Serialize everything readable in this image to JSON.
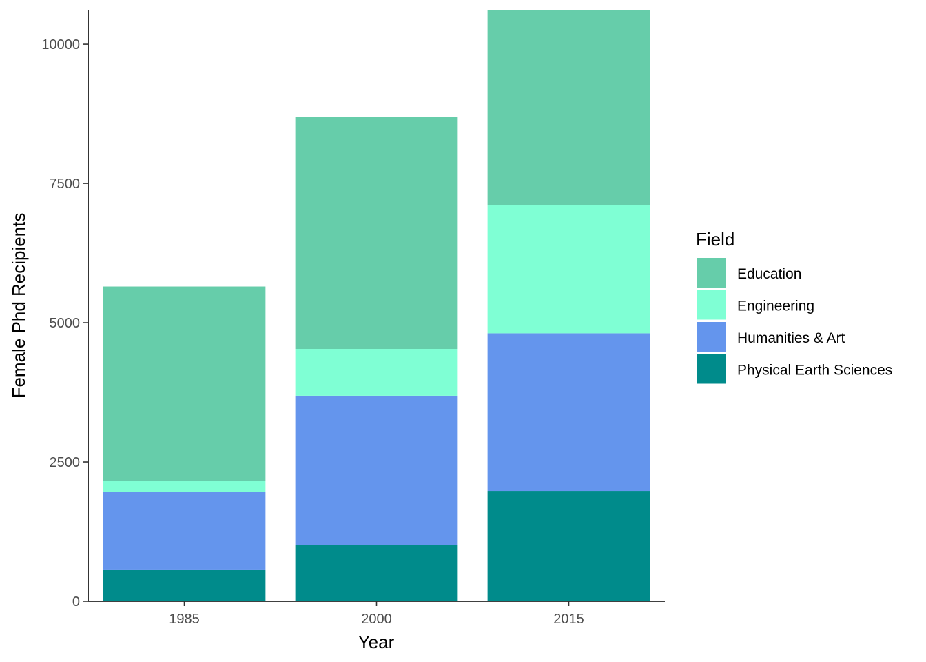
{
  "chart_data": {
    "type": "bar",
    "stacked": true,
    "title": "",
    "xlabel": "Year",
    "ylabel": "Female Phd Recipients",
    "categories": [
      "1985",
      "2000",
      "2015"
    ],
    "ylim": [
      0,
      10620
    ],
    "yticks": [
      0,
      2500,
      5000,
      7500,
      10000
    ],
    "grid": false,
    "legend": {
      "title": "Field",
      "position": "right"
    },
    "series": [
      {
        "name": "Physical Earth Sciences",
        "color": "#008B8B",
        "values": [
          570,
          1010,
          1980
        ]
      },
      {
        "name": "Humanities & Art",
        "color": "#6495ED",
        "values": [
          1390,
          2680,
          2830
        ]
      },
      {
        "name": "Engineering",
        "color": "#7FFFD4",
        "values": [
          200,
          840,
          2300
        ]
      },
      {
        "name": "Education",
        "color": "#66CDAA",
        "values": [
          3490,
          4170,
          3510
        ]
      }
    ],
    "legend_order": [
      "Education",
      "Engineering",
      "Humanities & Art",
      "Physical Earth Sciences"
    ]
  }
}
